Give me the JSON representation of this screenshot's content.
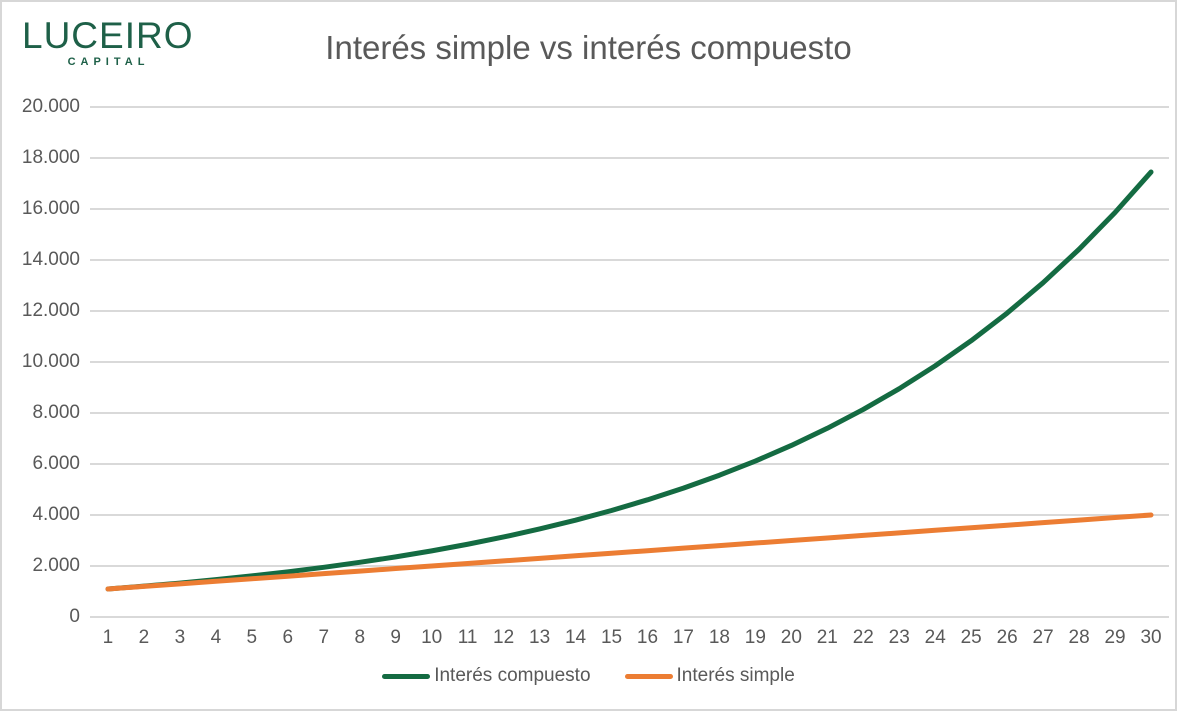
{
  "logo": {
    "name": "LUCEIRO",
    "subtitle": "CAPITAL",
    "color": "#1E6048"
  },
  "title": {
    "text": "Interés simple vs interés compuesto",
    "color": "#595959"
  },
  "chart_data": {
    "type": "line",
    "title": "Interés simple vs interés compuesto",
    "x": [
      1,
      2,
      3,
      4,
      5,
      6,
      7,
      8,
      9,
      10,
      11,
      12,
      13,
      14,
      15,
      16,
      17,
      18,
      19,
      20,
      21,
      22,
      23,
      24,
      25,
      26,
      27,
      28,
      29,
      30
    ],
    "series": [
      {
        "name": "Interés compuesto",
        "color": "#146B42",
        "values": [
          1100,
          1210,
          1331,
          1464,
          1611,
          1772,
          1949,
          2144,
          2358,
          2594,
          2853,
          3138,
          3452,
          3797,
          4177,
          4595,
          5054,
          5560,
          6116,
          6727,
          7400,
          8140,
          8954,
          9850,
          10835,
          11918,
          13110,
          14421,
          15863,
          17449
        ]
      },
      {
        "name": "Interés simple",
        "color": "#EC7D33",
        "values": [
          1100,
          1200,
          1300,
          1400,
          1500,
          1600,
          1700,
          1800,
          1900,
          2000,
          2100,
          2200,
          2300,
          2400,
          2500,
          2600,
          2700,
          2800,
          2900,
          3000,
          3100,
          3200,
          3300,
          3400,
          3500,
          3600,
          3700,
          3800,
          3900,
          4000
        ]
      }
    ],
    "xlabel": "",
    "ylabel": "",
    "ylim": [
      0,
      20000
    ],
    "ytick_interval": 2000,
    "ytick_labels": [
      "0",
      "2.000",
      "4.000",
      "6.000",
      "8.000",
      "10.000",
      "12.000",
      "14.000",
      "16.000",
      "18.000",
      "20.000"
    ],
    "grid": true,
    "gridline_color": "#D9D9D9",
    "axis_label_color": "#595959",
    "legend_position": "bottom"
  }
}
